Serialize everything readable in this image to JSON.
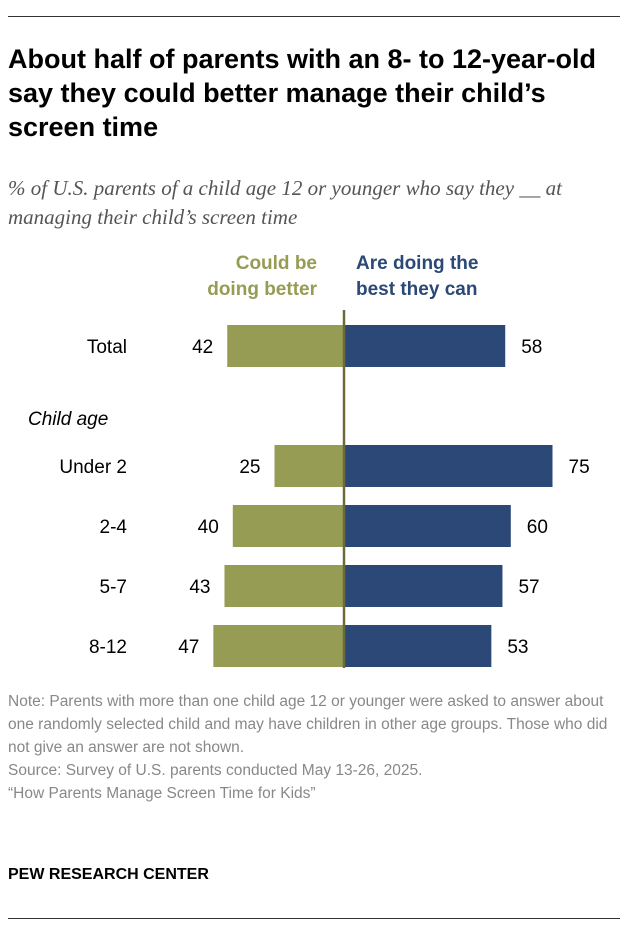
{
  "title": "About half of parents with an 8- to 12-year-old say they could better manage their child’s screen time",
  "subtitle": "% of U.S. parents of a child age 12 or younger who say they __ at managing their child’s screen time",
  "chart_data": {
    "type": "bar",
    "orientation": "horizontal-diverging",
    "group_label": "Child age",
    "categories": [
      "Total",
      "Under 2",
      "2-4",
      "5-7",
      "8-12"
    ],
    "series": [
      {
        "name": "Could be doing better",
        "color": "#979c54",
        "values": [
          42,
          25,
          40,
          43,
          47
        ]
      },
      {
        "name": "Are doing the best they can",
        "color": "#2c4876",
        "values": [
          58,
          75,
          60,
          57,
          53
        ]
      }
    ]
  },
  "legend": {
    "left": "Could be\ndoing better",
    "right": "Are doing the\nbest they can"
  },
  "note": "Note: Parents with more than one child age 12 or younger were asked to answer about one randomly selected child and may have children in other age groups. Those who did not give an answer are not shown.",
  "source": "Source: Survey of U.S. parents conducted May 13-26, 2025.",
  "report": "“How Parents Manage Screen Time for Kids”",
  "brand": "PEW RESEARCH CENTER"
}
